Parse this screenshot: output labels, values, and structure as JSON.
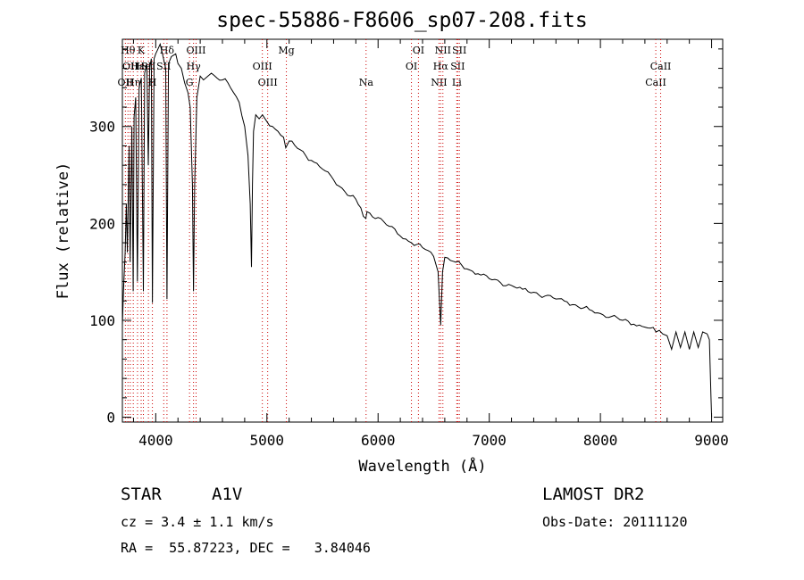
{
  "chart_data": {
    "type": "line",
    "title": "spec-55886-F8606_sp07-208.fits",
    "xlabel": "Wavelength (Å)",
    "ylabel": "Flux (relative)",
    "xlim": [
      3700,
      9100
    ],
    "ylim": [
      -5,
      390
    ],
    "xticks": [
      4000,
      5000,
      6000,
      7000,
      8000,
      9000
    ],
    "yticks": [
      0,
      100,
      200,
      300
    ],
    "line_color": "#000000",
    "marker_color": "#cc0000",
    "series": [
      {
        "values": [
          [
            3700,
            95
          ],
          [
            3710,
            130
          ],
          [
            3725,
            170
          ],
          [
            3735,
            220
          ],
          [
            3745,
            170
          ],
          [
            3760,
            280
          ],
          [
            3770,
            160
          ],
          [
            3785,
            300
          ],
          [
            3797,
            130
          ],
          [
            3805,
            310
          ],
          [
            3820,
            330
          ],
          [
            3835,
            140
          ],
          [
            3850,
            340
          ],
          [
            3870,
            350
          ],
          [
            3889,
            130
          ],
          [
            3900,
            355
          ],
          [
            3920,
            365
          ],
          [
            3933,
            260
          ],
          [
            3945,
            360
          ],
          [
            3960,
            370
          ],
          [
            3970,
            118
          ],
          [
            3985,
            370
          ],
          [
            4000,
            375
          ],
          [
            4020,
            380
          ],
          [
            4040,
            385
          ],
          [
            4060,
            375
          ],
          [
            4090,
            360
          ],
          [
            4101,
            122
          ],
          [
            4115,
            365
          ],
          [
            4140,
            372
          ],
          [
            4180,
            375
          ],
          [
            4200,
            365
          ],
          [
            4230,
            360
          ],
          [
            4260,
            345
          ],
          [
            4290,
            335
          ],
          [
            4310,
            320
          ],
          [
            4330,
            240
          ],
          [
            4340,
            130
          ],
          [
            4350,
            240
          ],
          [
            4370,
            330
          ],
          [
            4400,
            352
          ],
          [
            4430,
            348
          ],
          [
            4470,
            352
          ],
          [
            4500,
            355
          ],
          [
            4550,
            350
          ],
          [
            4600,
            348
          ],
          [
            4650,
            345
          ],
          [
            4700,
            335
          ],
          [
            4750,
            325
          ],
          [
            4800,
            300
          ],
          [
            4830,
            270
          ],
          [
            4850,
            220
          ],
          [
            4861,
            155
          ],
          [
            4870,
            240
          ],
          [
            4880,
            295
          ],
          [
            4900,
            312
          ],
          [
            4930,
            308
          ],
          [
            4960,
            312
          ],
          [
            5000,
            305
          ],
          [
            5050,
            300
          ],
          [
            5100,
            295
          ],
          [
            5150,
            289
          ],
          [
            5170,
            278
          ],
          [
            5200,
            285
          ],
          [
            5300,
            276
          ],
          [
            5400,
            265
          ],
          [
            5500,
            256
          ],
          [
            5600,
            245
          ],
          [
            5700,
            233
          ],
          [
            5800,
            225
          ],
          [
            5890,
            205
          ],
          [
            5900,
            212
          ],
          [
            6000,
            206
          ],
          [
            6100,
            197
          ],
          [
            6200,
            187
          ],
          [
            6300,
            180
          ],
          [
            6400,
            175
          ],
          [
            6450,
            172
          ],
          [
            6500,
            166
          ],
          [
            6540,
            150
          ],
          [
            6563,
            95
          ],
          [
            6580,
            150
          ],
          [
            6600,
            165
          ],
          [
            6700,
            160
          ],
          [
            6800,
            153
          ],
          [
            6900,
            148
          ],
          [
            7000,
            143
          ],
          [
            7100,
            139
          ],
          [
            7200,
            136
          ],
          [
            7300,
            132
          ],
          [
            7400,
            129
          ],
          [
            7500,
            125
          ],
          [
            7600,
            122
          ],
          [
            7700,
            119
          ],
          [
            7800,
            114
          ],
          [
            7900,
            111
          ],
          [
            8000,
            107
          ],
          [
            8100,
            104
          ],
          [
            8200,
            100
          ],
          [
            8300,
            96
          ],
          [
            8400,
            93
          ],
          [
            8450,
            92
          ],
          [
            8500,
            88
          ],
          [
            8560,
            86
          ],
          [
            8600,
            84
          ],
          [
            8640,
            70
          ],
          [
            8680,
            88
          ],
          [
            8720,
            72
          ],
          [
            8760,
            88
          ],
          [
            8800,
            70
          ],
          [
            8840,
            88
          ],
          [
            8880,
            72
          ],
          [
            8920,
            88
          ],
          [
            8960,
            86
          ],
          [
            8980,
            80
          ],
          [
            8995,
            20
          ],
          [
            9000,
            0
          ]
        ]
      }
    ],
    "lines": [
      {
        "x": 3727,
        "label": "OII",
        "row": 2
      },
      {
        "x": 3750,
        "label": "Hθ",
        "row": 0
      },
      {
        "x": 3771,
        "label": "OII",
        "row": 1
      },
      {
        "x": 3798,
        "label": "Hη",
        "row": 2
      },
      {
        "x": 3836,
        "label": "Hε",
        "row": 1
      },
      {
        "x": 3869,
        "label": "K",
        "row": 0
      },
      {
        "x": 3889,
        "label": "He",
        "row": 1
      },
      {
        "x": 3934,
        "label": "SII",
        "row": 1
      },
      {
        "x": 3970,
        "label": "H",
        "row": 2
      },
      {
        "x": 4101,
        "label": "Hδ",
        "row": 0
      },
      {
        "x": 4072,
        "label": "SII",
        "row": 1
      },
      {
        "x": 4304,
        "label": "G",
        "row": 2
      },
      {
        "x": 4340,
        "label": "Hγ",
        "row": 1
      },
      {
        "x": 4363,
        "label": "OIII",
        "row": 0
      },
      {
        "x": 4959,
        "label": "OIII",
        "row": 1
      },
      {
        "x": 5007,
        "label": "OIII",
        "row": 2
      },
      {
        "x": 5175,
        "label": "Mg",
        "row": 0
      },
      {
        "x": 5892,
        "label": "Na",
        "row": 2
      },
      {
        "x": 6300,
        "label": "OI",
        "row": 1
      },
      {
        "x": 6363,
        "label": "OI",
        "row": 0
      },
      {
        "x": 6548,
        "label": "NII",
        "row": 2
      },
      {
        "x": 6563,
        "label": "Hα",
        "row": 1
      },
      {
        "x": 6583,
        "label": "NII",
        "row": 0
      },
      {
        "x": 6716,
        "label": "SII",
        "row": 1
      },
      {
        "x": 6731,
        "label": "SII",
        "row": 0
      },
      {
        "x": 6708,
        "label": "Li",
        "row": 2
      },
      {
        "x": 8498,
        "label": "CaII",
        "row": 2
      },
      {
        "x": 8542,
        "label": "CaII",
        "row": 1
      }
    ]
  },
  "info": {
    "class": "STAR",
    "subclass": "A1V",
    "cz": "cz = 3.4 ± 1.1 km/s",
    "coords": "RA =  55.87223, DEC =   3.84046",
    "survey": "LAMOST DR2",
    "obs_date": "Obs-Date: 20111120"
  }
}
